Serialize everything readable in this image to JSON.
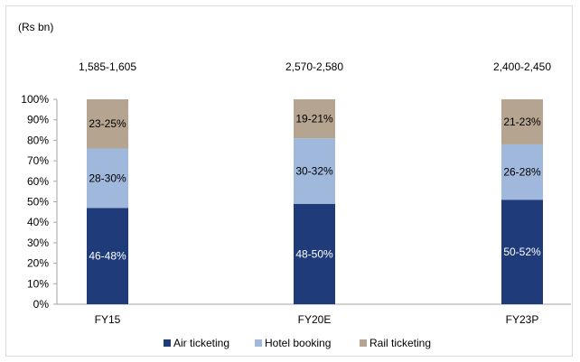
{
  "chart_data": {
    "type": "bar",
    "stacked": true,
    "percent_stacked": true,
    "unit_label": "(Rs bn)",
    "categories": [
      "FY15",
      "FY20E",
      "FY23P"
    ],
    "totals": [
      "1,585-1,605",
      "2,570-2,580",
      "2,400-2,450"
    ],
    "series": [
      {
        "name": "Air ticketing",
        "color": "#1f3b7a",
        "label_color": "#ffffff",
        "values": [
          47,
          49,
          51
        ],
        "labels": [
          "46-48%",
          "48-50%",
          "50-52%"
        ]
      },
      {
        "name": "Hotel booking",
        "color": "#9fb8dc",
        "label_color": "#000000",
        "values": [
          29,
          32,
          27
        ],
        "labels": [
          "28-30%",
          "30-32%",
          "26-28%"
        ]
      },
      {
        "name": "Rail ticketing",
        "color": "#b5a48f",
        "label_color": "#000000",
        "values": [
          24,
          19,
          22
        ],
        "labels": [
          "23-25%",
          "19-21%",
          "21-23%"
        ]
      }
    ],
    "yticks": [
      "0%",
      "10%",
      "20%",
      "30%",
      "40%",
      "50%",
      "60%",
      "70%",
      "80%",
      "90%",
      "100%"
    ],
    "ylim": [
      0,
      100
    ],
    "grid": false,
    "legend_position": "bottom"
  }
}
